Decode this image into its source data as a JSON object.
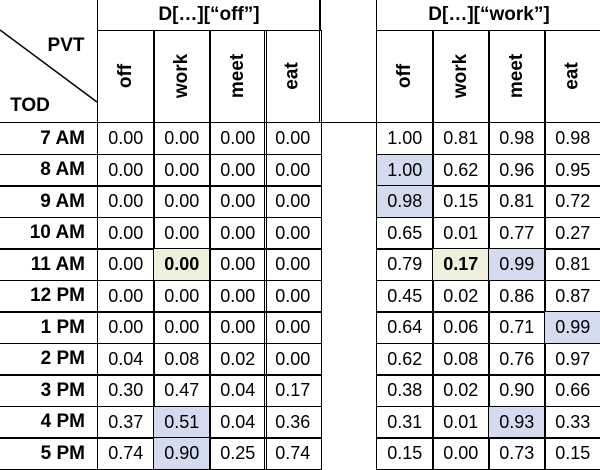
{
  "header": {
    "group_labels": [
      "D[…][“off”]",
      "D[…][“work”]"
    ],
    "corner_top": "PVT",
    "corner_bottom": "TOD",
    "columns": [
      [
        "off",
        "work",
        "meet",
        "eat"
      ],
      [
        "off",
        "work",
        "meet",
        "eat"
      ]
    ]
  },
  "table": {
    "rows": [
      {
        "label": "7 AM",
        "values": [
          "0.00",
          "0.00",
          "0.00",
          "0.00",
          "1.00",
          "0.81",
          "0.98",
          "0.98"
        ]
      },
      {
        "label": "8 AM",
        "values": [
          "0.00",
          "0.00",
          "0.00",
          "0.00",
          "1.00",
          "0.62",
          "0.96",
          "0.95"
        ]
      },
      {
        "label": "9 AM",
        "values": [
          "0.00",
          "0.00",
          "0.00",
          "0.00",
          "0.98",
          "0.15",
          "0.81",
          "0.72"
        ]
      },
      {
        "label": "10 AM",
        "values": [
          "0.00",
          "0.00",
          "0.00",
          "0.00",
          "0.65",
          "0.01",
          "0.77",
          "0.27"
        ]
      },
      {
        "label": "11 AM",
        "values": [
          "0.00",
          "0.00",
          "0.00",
          "0.00",
          "0.79",
          "0.17",
          "0.99",
          "0.81"
        ]
      },
      {
        "label": "12 PM",
        "values": [
          "0.00",
          "0.00",
          "0.00",
          "0.00",
          "0.45",
          "0.02",
          "0.86",
          "0.87"
        ]
      },
      {
        "label": "1 PM",
        "values": [
          "0.00",
          "0.00",
          "0.00",
          "0.00",
          "0.64",
          "0.06",
          "0.71",
          "0.99"
        ]
      },
      {
        "label": "2 PM",
        "values": [
          "0.04",
          "0.08",
          "0.02",
          "0.00",
          "0.62",
          "0.08",
          "0.76",
          "0.97"
        ]
      },
      {
        "label": "3 PM",
        "values": [
          "0.30",
          "0.47",
          "0.04",
          "0.17",
          "0.38",
          "0.02",
          "0.90",
          "0.66"
        ]
      },
      {
        "label": "4 PM",
        "values": [
          "0.37",
          "0.51",
          "0.04",
          "0.36",
          "0.31",
          "0.01",
          "0.93",
          "0.33"
        ]
      },
      {
        "label": "5 PM",
        "values": [
          "0.74",
          "0.90",
          "0.25",
          "0.74",
          "0.15",
          "0.00",
          "0.73",
          "0.15"
        ]
      }
    ]
  }
}
